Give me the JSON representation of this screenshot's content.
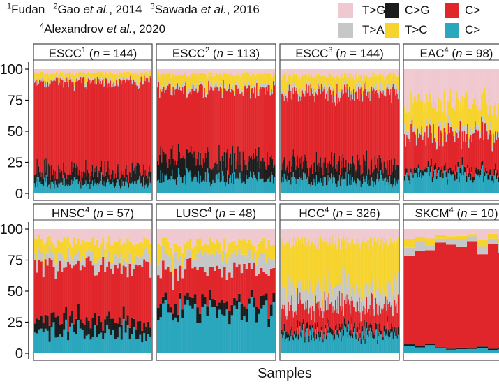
{
  "sources": {
    "line1": [
      {
        "sup": "1",
        "text": "Fudan",
        "etal": false,
        "year": ""
      },
      {
        "sup": "2",
        "text": "Gao",
        "etal": true,
        "year": ", 2014"
      },
      {
        "sup": "3",
        "text": "Sawada",
        "etal": true,
        "year": ", 2016"
      }
    ],
    "line2": [
      {
        "sup": "4",
        "text": "Alexandrov",
        "etal": true,
        "year": ", 2020"
      }
    ],
    "etal_text": "et al."
  },
  "legend": [
    {
      "label": "T>G",
      "color": "#efc9cf"
    },
    {
      "label": "C>G",
      "color": "#1c1c1c"
    },
    {
      "label": "C>",
      "color": "#e0262a"
    },
    {
      "label": "T>A",
      "color": "#c7c7c7"
    },
    {
      "label": "T>C",
      "color": "#f6d32d"
    },
    {
      "label": "C>",
      "color": "#2aa6bd"
    }
  ],
  "chart_data": {
    "type": "stacked_bar",
    "title": "",
    "xlabel": "Samples",
    "ylabel": "",
    "ylim": [
      0,
      100
    ],
    "yticks": [
      0,
      25,
      50,
      75,
      100
    ],
    "stack_order": [
      "C>T",
      "C>G",
      "C>A",
      "T>A",
      "T>C",
      "T>G"
    ],
    "colors": {
      "C>T": "#2aa6bd",
      "C>G": "#1c1c1c",
      "C>A": "#e0262a",
      "T>A": "#c7c7c7",
      "T>C": "#f6d32d",
      "T>G": "#efc9cf"
    },
    "panels": [
      {
        "cohort": "ESCC",
        "sup": "1",
        "n": 144,
        "approx_mean_pct": {
          "C>T": 8,
          "C>G": 9,
          "C>A": 73,
          "T>A": 2,
          "T>C": 5,
          "T>G": 3
        }
      },
      {
        "cohort": "ESCC",
        "sup": "2",
        "n": 113,
        "approx_mean_pct": {
          "C>T": 12,
          "C>G": 15,
          "C>A": 57,
          "T>A": 3,
          "T>C": 9,
          "T>G": 4
        }
      },
      {
        "cohort": "ESCC",
        "sup": "3",
        "n": 144,
        "approx_mean_pct": {
          "C>T": 10,
          "C>G": 12,
          "C>A": 60,
          "T>A": 4,
          "T>C": 9,
          "T>G": 5
        }
      },
      {
        "cohort": "EAC",
        "sup": "4",
        "n": 98,
        "approx_mean_pct": {
          "C>T": 14,
          "C>G": 4,
          "C>A": 30,
          "T>A": 5,
          "T>C": 20,
          "T>G": 27
        }
      },
      {
        "cohort": "HNSC",
        "sup": "4",
        "n": 57,
        "approx_mean_pct": {
          "C>T": 17,
          "C>G": 10,
          "C>A": 44,
          "T>A": 8,
          "T>C": 12,
          "T>G": 9
        }
      },
      {
        "cohort": "LUSC",
        "sup": "4",
        "n": 48,
        "approx_mean_pct": {
          "C>T": 34,
          "C>G": 8,
          "C>A": 25,
          "T>A": 11,
          "T>C": 10,
          "T>G": 12
        }
      },
      {
        "cohort": "HCC",
        "sup": "4",
        "n": 326,
        "approx_mean_pct": {
          "C>T": 15,
          "C>G": 4,
          "C>A": 18,
          "T>A": 15,
          "T>C": 38,
          "T>G": 10
        }
      },
      {
        "cohort": "SKCM",
        "sup": "4",
        "n": 10,
        "approx_mean_pct": {
          "C>T": 4,
          "C>G": 1,
          "C>A": 80,
          "T>A": 5,
          "T>C": 4,
          "T>G": 6
        }
      }
    ]
  }
}
